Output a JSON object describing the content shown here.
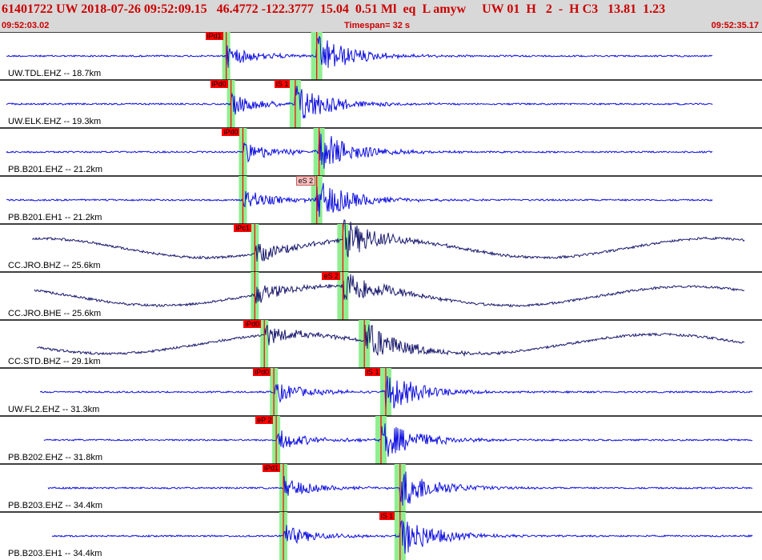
{
  "header": {
    "title": "61401722 UW 2018-07-26 09:52:09.15   46.4772 -122.3777  15.04  0.51 Ml  eq  L amyw     UW 01  H   2  -  H C3   13.81  1.23",
    "start_time": "09:52:03.02",
    "timespan": "Timespan=  32 s",
    "end_time": "09:52:35.17"
  },
  "colors": {
    "header_bg": "#d8d8d8",
    "header_text": "#cc0000",
    "trace_blue": "#1010e0",
    "trace_navy": "#1a1a6e",
    "pick_line": "#ff0000",
    "pick_window": "#90ee90",
    "pick_tag_red": "#ff0000",
    "pick_tag_pink": "#ffc0c0"
  },
  "traces": [
    {
      "label": "UW.TDL.EHZ -- 18.7km",
      "color": "blue",
      "p": {
        "label": "iPd1",
        "time": 9.5
      },
      "s": {
        "label": "",
        "time": 13.3,
        "tag": false
      }
    },
    {
      "label": "UW.ELK.EHZ -- 19.3km",
      "color": "blue",
      "p": {
        "label": "iPd0",
        "time": 9.7
      },
      "s": {
        "label": "iS 1",
        "time": 12.4,
        "tag": true
      }
    },
    {
      "label": "PB.B201.EHZ -- 21.2km",
      "color": "blue",
      "p": {
        "label": "iPd0",
        "time": 10.2
      },
      "s": {
        "label": "",
        "time": 13.4,
        "tag": false
      }
    },
    {
      "label": "PB.B201.EH1 -- 21.2km",
      "color": "blue",
      "p": {
        "label": "",
        "time": 10.2
      },
      "s": {
        "label": "eS 2",
        "time": 13.3,
        "tag": true,
        "pink": true
      }
    },
    {
      "label": "CC.JRO.BHZ -- 25.6km",
      "color": "navy",
      "p": {
        "label": "iPc1",
        "time": 10.7
      },
      "s": {
        "label": "",
        "time": 14.4,
        "tag": false
      }
    },
    {
      "label": "CC.JRO.BHE -- 25.6km",
      "color": "navy",
      "p": {
        "label": "",
        "time": 10.7
      },
      "s": {
        "label": "eS 2",
        "time": 14.4,
        "tag": true
      }
    },
    {
      "label": "CC.STD.BHZ -- 29.1km",
      "color": "navy",
      "p": {
        "label": "iPd0",
        "time": 11.1
      },
      "s": {
        "label": "",
        "time": 15.3,
        "tag": false
      }
    },
    {
      "label": "UW.FL2.EHZ -- 31.3km",
      "color": "blue",
      "p": {
        "label": "iPd0",
        "time": 11.5
      },
      "s": {
        "label": "iS 1",
        "time": 16.2,
        "tag": true
      }
    },
    {
      "label": "PB.B202.EHZ -- 31.8km",
      "color": "blue",
      "p": {
        "label": "eP 2",
        "time": 11.6
      },
      "s": {
        "label": "",
        "time": 16.0,
        "tag": false
      }
    },
    {
      "label": "PB.B203.EHZ -- 34.4km",
      "color": "blue",
      "p": {
        "label": "iPd1",
        "time": 11.9
      },
      "s": {
        "label": "",
        "time": 16.8,
        "tag": false
      }
    },
    {
      "label": "PB.B203.EH1 -- 34.4km",
      "color": "blue",
      "p": {
        "label": "",
        "time": 11.9
      },
      "s": {
        "label": "iS 1",
        "time": 16.8,
        "tag": true
      }
    }
  ],
  "window": {
    "duration_s": 32
  }
}
